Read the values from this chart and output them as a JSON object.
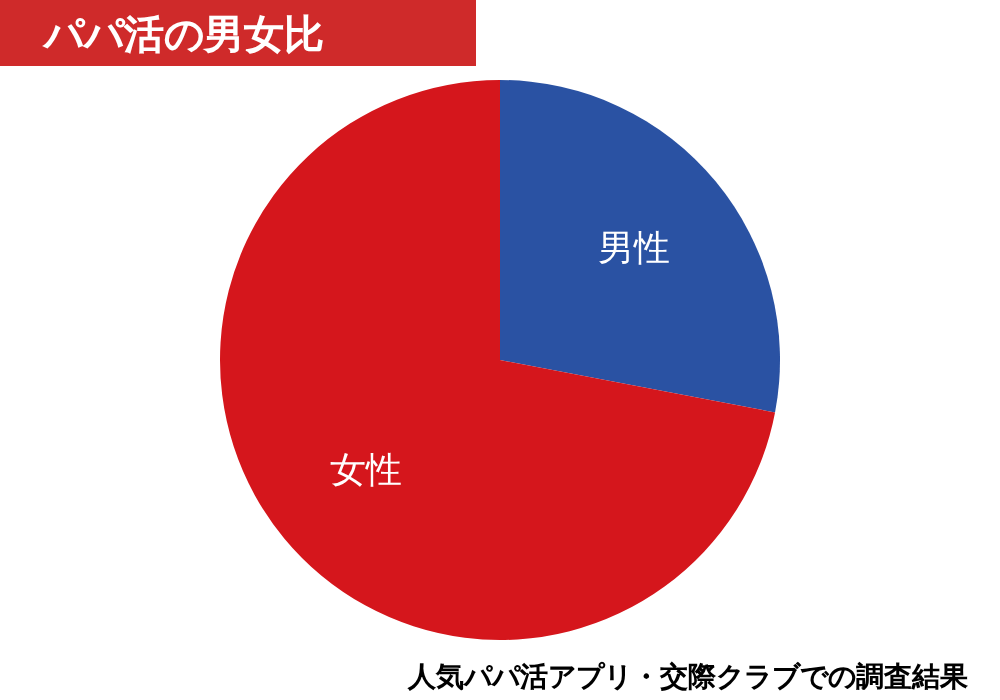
{
  "chart_data": {
    "type": "pie",
    "title": "パパ活の男女比",
    "categories": [
      "男性",
      "女性"
    ],
    "values": [
      28,
      72
    ],
    "colors": [
      "#2a52a3",
      "#d5161c"
    ],
    "annotations": [
      "人気パパ活アプリ・交際クラブでの調査結果"
    ]
  }
}
